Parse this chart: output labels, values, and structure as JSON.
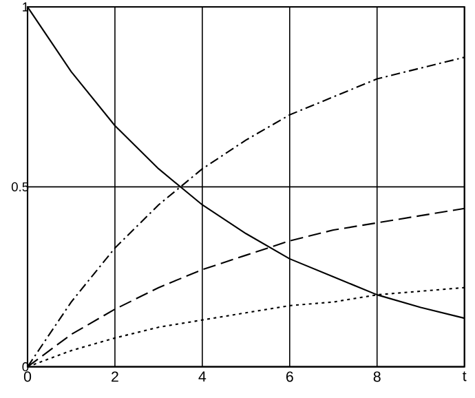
{
  "chart_data": {
    "type": "line",
    "x": [
      0,
      1,
      2,
      3,
      4,
      5,
      6,
      7,
      8,
      9,
      10
    ],
    "series": [
      {
        "color": "#000000",
        "line_style": "solid",
        "values": [
          1,
          0.82,
          0.67,
          0.55,
          0.45,
          0.37,
          0.3,
          0.25,
          0.2,
          0.165,
          0.135
        ]
      },
      {
        "color": "#000000",
        "line_style": "dashdot",
        "values": [
          0,
          0.18,
          0.33,
          0.45,
          0.55,
          0.63,
          0.7,
          0.75,
          0.8,
          0.83,
          0.86
        ]
      },
      {
        "color": "#000000",
        "line_style": "dashed",
        "values": [
          0,
          0.09,
          0.16,
          0.22,
          0.27,
          0.31,
          0.35,
          0.38,
          0.4,
          0.42,
          0.44
        ]
      },
      {
        "color": "#000000",
        "line_style": "dotted",
        "values": [
          0,
          0.045,
          0.08,
          0.11,
          0.13,
          0.15,
          0.17,
          0.18,
          0.2,
          0.21,
          0.22
        ]
      }
    ],
    "xlim": [
      0,
      10
    ],
    "xticks": [
      0,
      2,
      4,
      6,
      8,
      {
        "value": 10,
        "label": "t"
      }
    ],
    "ylim": [
      0,
      1
    ],
    "yticks": [
      0,
      0.5,
      1
    ],
    "grid": true,
    "marker": "none"
  }
}
